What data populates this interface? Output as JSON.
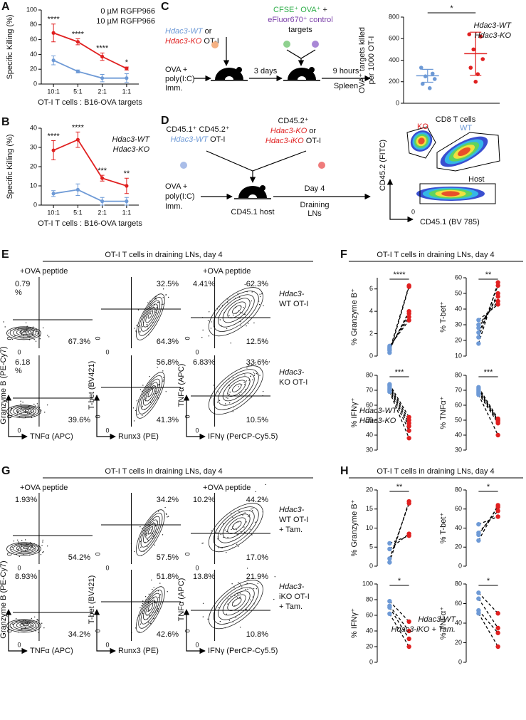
{
  "panel_letters": [
    "A",
    "B",
    "C",
    "D",
    "E",
    "F",
    "G",
    "H"
  ],
  "diagram_c": {
    "cells": [
      [
        "Hdac3-WT",
        " or"
      ],
      [
        "Hdac3-KO",
        " OT-I"
      ]
    ],
    "targets": [
      [
        "CFSE⁺ OVA⁺",
        " +"
      ],
      [
        "eFluor670⁺ control"
      ],
      [
        "targets"
      ]
    ],
    "immunization": [
      "OVA +",
      "poly(I:C)",
      "Imm."
    ],
    "interval": "3 days",
    "readout": [
      "9 hours",
      "Spleen"
    ]
  },
  "diagram_d": {
    "donor_wt": [
      [
        "CD45.1⁺ CD45.2⁺"
      ],
      [
        "Hdac3-WT",
        " OT-I"
      ]
    ],
    "donor_ko": [
      [
        "CD45.2⁺"
      ],
      [
        "Hdac3-KO",
        " or"
      ],
      [
        "Hdac3-iKO",
        " OT-I"
      ]
    ],
    "immunization": [
      "OVA +",
      "poly(I:C)",
      "Imm."
    ],
    "host": "CD45.1 host",
    "readout": [
      "Day 4",
      "Draining",
      "LNs"
    ],
    "flow": {
      "title": "CD8 T cells",
      "gates": [
        "KO",
        "WT",
        "Host"
      ],
      "ylabel": "CD45.2 (FITC)",
      "xlabel": "CD45.1 (BV 785)",
      "zero": "0"
    }
  },
  "panel_e": {
    "header": "OT-I T cells in draining LNs, day 4",
    "condition": [
      "+OVA peptide",
      "+OVA peptide"
    ],
    "rows": [
      {
        "label": [
          "Hdac3-",
          "WT OT-I"
        ],
        "color": "#6e9ad6",
        "plots": [
          {
            "tl": [
              "0.79",
              "%"
            ],
            "br": "67.3%"
          },
          {
            "tr": "32.5%",
            "br": "64.3%"
          },
          {
            "tl": "4.41%",
            "tr": "62.3%",
            "br": "12.5%"
          }
        ]
      },
      {
        "label": [
          "Hdac3-",
          "KO OT-I"
        ],
        "color": "#e02020",
        "plots": [
          {
            "tl": [
              "6.18",
              "%"
            ],
            "br": "39.6%"
          },
          {
            "tr": "56.8%",
            "br": "41.3%"
          },
          {
            "tl": "6.83%",
            "tr": "33.6%",
            "br": "10.5%"
          }
        ]
      }
    ],
    "y_axes": [
      "Granzyme B (PE-Cy7)",
      "T-bet (BV421)",
      "TNFα (APC)"
    ],
    "x_axes": [
      "TNFα (APC)",
      "Runx3 (PE)",
      "IFNγ (PerCP-Cy5.5)"
    ],
    "zero": "0"
  },
  "panel_f": {
    "header": "OT-I T cells in draining LNs, day 4"
  },
  "panel_g": {
    "header": "OT-I T cells in draining LNs, day 4",
    "condition": [
      "+OVA peptide",
      "+OVA peptide"
    ],
    "rows": [
      {
        "label": [
          "Hdac3-",
          "WT OT-I",
          "+ Tam."
        ],
        "color": "#6e9ad6",
        "plots": [
          {
            "tl": "1.93%",
            "br": "54.2%"
          },
          {
            "tr": "34.2%",
            "br": "57.5%"
          },
          {
            "tl": "10.2%",
            "tr": "44.2%",
            "br": "17.0%"
          }
        ]
      },
      {
        "label": [
          "Hdac3-",
          "iKO OT-I",
          "+ Tam."
        ],
        "color": "#e02020",
        "plots": [
          {
            "tl": "8.93%",
            "br": "34.2%"
          },
          {
            "tr": "51.8%",
            "br": "42.6%"
          },
          {
            "tl": "13.8%",
            "tr": "21.9%",
            "br": "10.8%"
          }
        ]
      }
    ],
    "y_axes": [
      "Granzyme B (PE-Cy7)",
      "T-bet (BV421)",
      "TNFα (APC)"
    ],
    "x_axes": [
      "TNFα (APC)",
      "Runx3 (PE)",
      "IFNγ (PerCP-Cy5.5)"
    ],
    "zero": "0"
  },
  "panel_h": {
    "header": "OT-I T cells in draining LNs, day 4"
  },
  "chart_data": [
    {
      "type": "line",
      "ylabel": "Specific Killing (%)",
      "xlabel": "OT-I T cells : B16-OVA targets",
      "categories": [
        "10:1",
        "5:1",
        "2:1",
        "1:1"
      ],
      "series": [
        {
          "name": "0 µM RGFP966",
          "color": "#6e9ad6",
          "values": [
            32,
            17,
            8,
            8
          ],
          "errors": [
            6,
            2,
            5,
            6
          ]
        },
        {
          "name": "10 µM RGFP966",
          "color": "#e02020",
          "values": [
            69,
            57,
            37,
            21
          ],
          "errors": [
            12,
            4,
            5,
            2
          ]
        }
      ],
      "annotations": [
        "****",
        "****",
        "****",
        "*"
      ],
      "ylim": [
        0,
        100
      ],
      "yticks": [
        0,
        20,
        40,
        60,
        80,
        100
      ],
      "legend": "top-right"
    },
    {
      "type": "line",
      "ylabel": "Specific Killing (%)",
      "xlabel": "OT-I T cells : B16-OVA targets",
      "categories": [
        "10:1",
        "5:1",
        "2:1",
        "1:1"
      ],
      "series": [
        {
          "name": "Hdac3-WT",
          "color": "#6e9ad6",
          "values": [
            6,
            8,
            2,
            2
          ],
          "errors": [
            1.5,
            3,
            2,
            2
          ]
        },
        {
          "name": "Hdac3-KO",
          "color": "#e02020",
          "values": [
            28.5,
            34,
            14,
            10
          ],
          "errors": [
            5,
            4,
            1.5,
            4
          ]
        }
      ],
      "annotations": [
        "****",
        "****",
        "***",
        "**"
      ],
      "ylim": [
        0,
        40
      ],
      "yticks": [
        0,
        10,
        20,
        30,
        40
      ],
      "legend": "top-right"
    },
    {
      "type": "scatter",
      "ylabel": [
        "OVA⁺ targets killed",
        "per 1000 OT-I"
      ],
      "series": [
        {
          "name": "Hdac3-WT",
          "color": "#6e9ad6",
          "values": [
            330,
            275,
            250,
            225,
            180,
            140
          ],
          "mean": 255,
          "error": 60
        },
        {
          "name": "Hdac3-KO",
          "color": "#e02020",
          "values": [
            640,
            620,
            500,
            410,
            330,
            270,
            200
          ],
          "mean": 460,
          "error": 200
        }
      ],
      "annotation": "*",
      "ylim": [
        0,
        800
      ],
      "yticks": [
        0,
        200,
        400,
        600,
        800
      ],
      "legend": "top-right"
    },
    {
      "type": "paired",
      "ylabel": "% Granzyme B⁺",
      "series": [
        {
          "color": "#6e9ad6",
          "values": [
            0.3,
            0.5,
            0.6,
            0.7,
            0.8,
            0.9
          ]
        },
        {
          "color": "#e02020",
          "values": [
            6.2,
            6.3,
            4,
            3.8,
            3.5,
            3.2
          ]
        }
      ],
      "annotation": "****",
      "ylim": [
        0,
        7
      ],
      "yticks": [
        0,
        2,
        4,
        6
      ]
    },
    {
      "type": "paired",
      "ylabel": "% T-bet⁺",
      "series": [
        {
          "color": "#6e9ad6",
          "values": [
            18,
            22,
            25,
            28,
            30,
            33
          ]
        },
        {
          "color": "#e02020",
          "values": [
            57,
            55,
            50,
            48,
            45,
            43
          ]
        }
      ],
      "annotation": "**",
      "ylim": [
        10,
        60
      ],
      "yticks": [
        10,
        20,
        30,
        40,
        50,
        60
      ]
    },
    {
      "type": "paired",
      "ylabel": "% IFNγ⁺",
      "series": [
        {
          "name": "Hdac3-WT",
          "color": "#6e9ad6",
          "values": [
            74,
            73,
            72,
            71,
            70,
            69
          ]
        },
        {
          "name": "Hdac3-KO",
          "color": "#e02020",
          "values": [
            52,
            50,
            48,
            46,
            43,
            38
          ]
        }
      ],
      "annotation": "***",
      "ylim": [
        30,
        80
      ],
      "yticks": [
        30,
        40,
        50,
        60,
        70,
        80
      ],
      "legend": "bottom-left"
    },
    {
      "type": "paired",
      "ylabel": "% TNFα⁺",
      "series": [
        {
          "color": "#6e9ad6",
          "values": [
            72,
            71,
            70,
            69,
            68,
            67
          ]
        },
        {
          "color": "#e02020",
          "values": [
            51,
            50,
            50,
            49,
            48,
            40
          ]
        }
      ],
      "annotation": "***",
      "ylim": [
        30,
        80
      ],
      "yticks": [
        30,
        40,
        50,
        60,
        70,
        80
      ]
    },
    {
      "type": "paired",
      "ylabel": "% Granzyme B⁺",
      "series": [
        {
          "color": "#6e9ad6",
          "values": [
            1,
            2,
            4.5,
            6
          ]
        },
        {
          "color": "#e02020",
          "values": [
            17,
            16.5,
            8.5,
            8
          ]
        }
      ],
      "annotation": "**",
      "ylim": [
        0,
        20
      ],
      "yticks": [
        0,
        5,
        10,
        15,
        20
      ]
    },
    {
      "type": "paired",
      "ylabel": "% T-bet⁺",
      "series": [
        {
          "color": "#6e9ad6",
          "values": [
            27,
            33,
            35,
            44
          ]
        },
        {
          "color": "#e02020",
          "values": [
            64,
            62,
            58,
            52
          ]
        }
      ],
      "annotation": "*",
      "ylim": [
        0,
        80
      ],
      "yticks": [
        0,
        20,
        40,
        60,
        80
      ]
    },
    {
      "type": "paired",
      "ylabel": "% IFNγ⁺",
      "series": [
        {
          "name": "Hdac3-WT",
          "color": "#6e9ad6",
          "values": [
            78,
            72,
            70,
            62
          ]
        },
        {
          "name": "Hdac3-iKO + Tam.",
          "color": "#e02020",
          "values": [
            52,
            40,
            30,
            20
          ]
        }
      ],
      "annotation": "*",
      "ylim": [
        0,
        100
      ],
      "yticks": [
        0,
        20,
        40,
        60,
        80,
        100
      ],
      "legend": "bottom-right"
    },
    {
      "type": "paired",
      "ylabel": "% TNFα⁺",
      "series": [
        {
          "color": "#6e9ad6",
          "values": [
            71,
            65,
            53,
            50
          ]
        },
        {
          "color": "#e02020",
          "values": [
            50,
            35,
            30,
            16
          ]
        }
      ],
      "annotation": "*",
      "ylim": [
        0,
        80
      ],
      "yticks": [
        0,
        20,
        40,
        60,
        80
      ]
    }
  ]
}
